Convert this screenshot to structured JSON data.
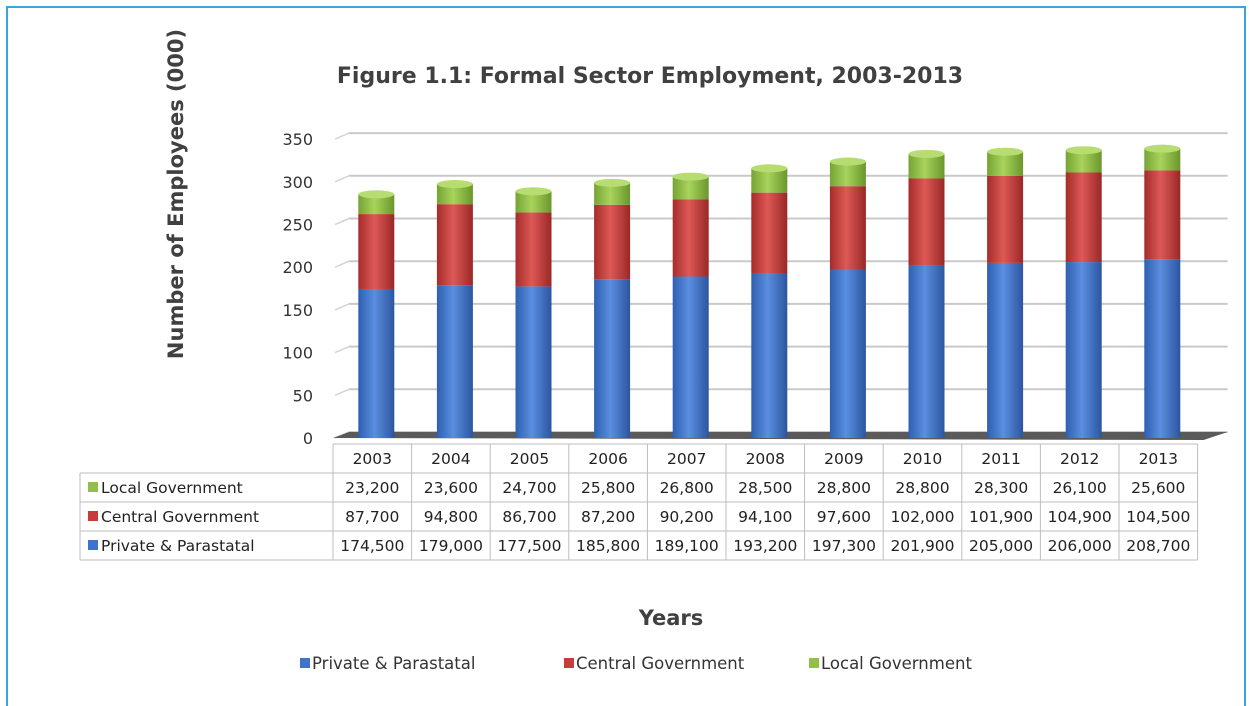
{
  "chart_data": {
    "type": "bar",
    "stacked": true,
    "title": "Figure 1.1: Formal Sector Employment, 2003-2013",
    "xlabel": "Years",
    "ylabel": "Number of Employees (000)",
    "ylim": [
      0,
      350
    ],
    "yticks": [
      "0",
      "50",
      "100",
      "150",
      "200",
      "250",
      "300",
      "350"
    ],
    "grid": true,
    "legend_position": "bottom",
    "categories": [
      "2003",
      "2004",
      "2005",
      "2006",
      "2007",
      "2008",
      "2009",
      "2010",
      "2011",
      "2012",
      "2013"
    ],
    "series": [
      {
        "name": "Private & Parastatal",
        "color": "#3f74c9",
        "values": [
          174.5,
          179.0,
          177.5,
          185.8,
          189.1,
          193.2,
          197.3,
          201.9,
          205.0,
          206.0,
          208.7
        ],
        "labels": [
          "174,500",
          "179,000",
          "177,500",
          "185,800",
          "189,100",
          "193,200",
          "197,300",
          "201,900",
          "205,000",
          "206,000",
          "208,700"
        ]
      },
      {
        "name": "Central Government",
        "color": "#c53c3a",
        "values": [
          87.7,
          94.8,
          86.7,
          87.2,
          90.2,
          94.1,
          97.6,
          102.0,
          101.9,
          104.9,
          104.5
        ],
        "labels": [
          "87,700",
          "94,800",
          "86,700",
          "87,200",
          "90,200",
          "94,100",
          "97,600",
          "102,000",
          "101,900",
          "104,900",
          "104,500"
        ]
      },
      {
        "name": "Local Government",
        "color": "#92c046",
        "values": [
          23.2,
          23.6,
          24.7,
          25.8,
          26.8,
          28.5,
          28.8,
          28.8,
          28.3,
          26.1,
          25.6
        ],
        "labels": [
          "23,200",
          "23,600",
          "24,700",
          "25,800",
          "26,800",
          "28,500",
          "28,800",
          "28,800",
          "28,300",
          "26,100",
          "25,600"
        ]
      }
    ],
    "table_row_order": [
      "Local Government",
      "Central Government",
      "Private & Parastatal"
    ]
  }
}
